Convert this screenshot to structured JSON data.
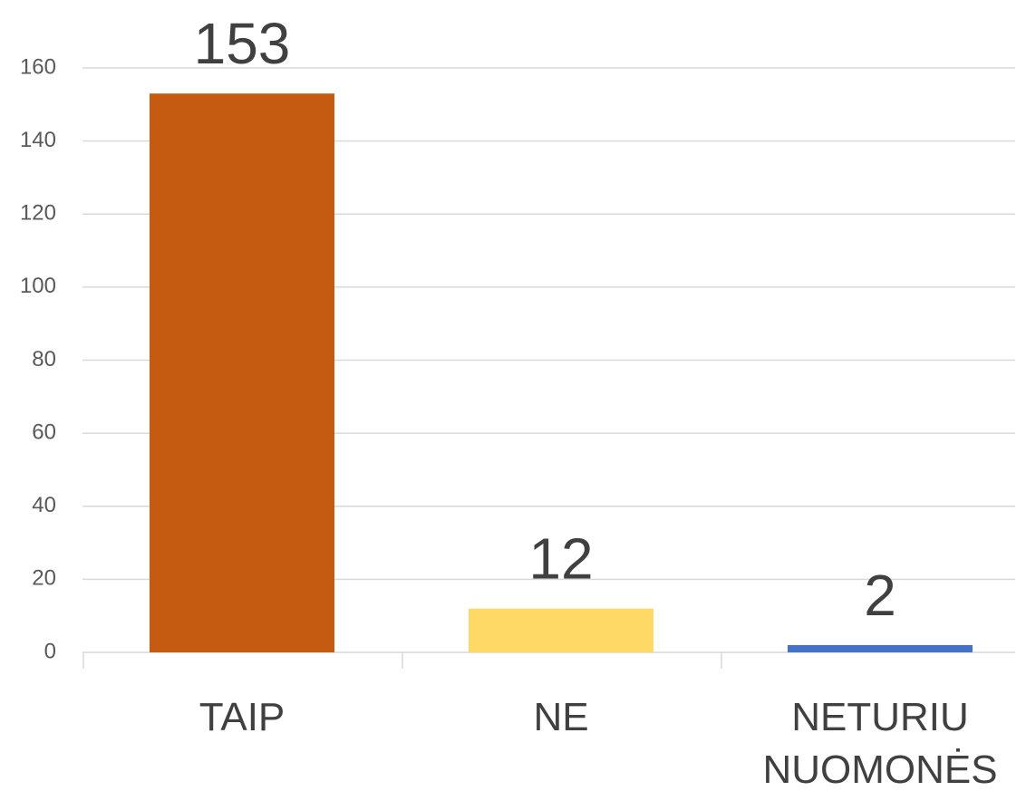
{
  "chart_data": {
    "type": "bar",
    "categories": [
      "TAIP",
      "NE",
      "NETURIU NUOMONĖS"
    ],
    "values": [
      153,
      12,
      2
    ],
    "colors": [
      "#c55a11",
      "#ffd966",
      "#4472c4"
    ],
    "ylim": [
      0,
      160
    ],
    "yticks": [
      0,
      20,
      40,
      60,
      80,
      100,
      120,
      140,
      160
    ],
    "grid": true
  }
}
